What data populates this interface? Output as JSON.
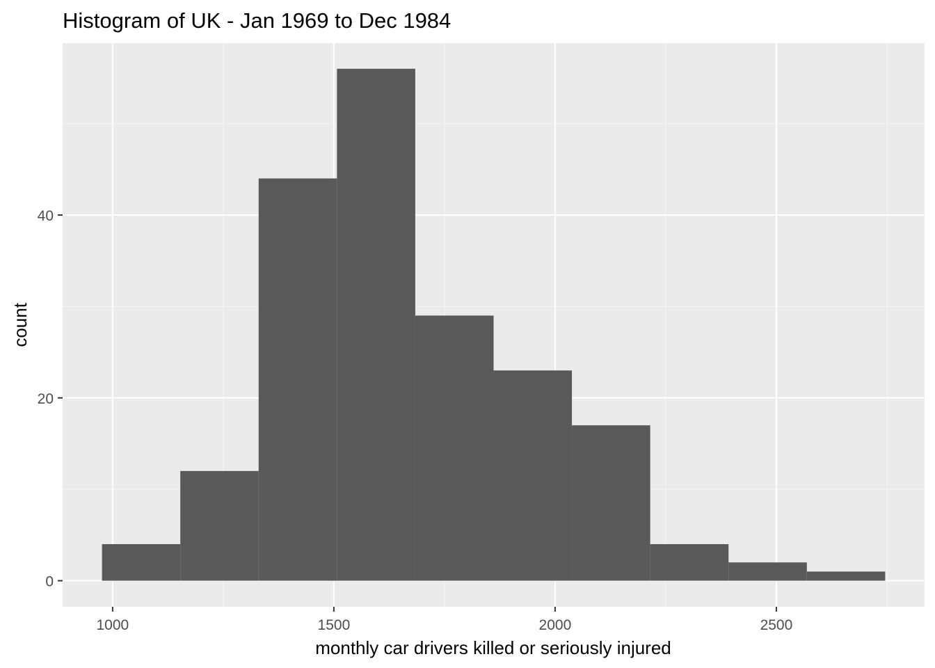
{
  "chart_data": {
    "type": "histogram",
    "title": "Histogram of  UK - Jan 1969 to Dec 1984",
    "xlabel": "monthly car drivers killed or seriously injured",
    "ylabel": "count",
    "xlim": [
      887,
      2835
    ],
    "ylim": [
      -2.85,
      58.8
    ],
    "x_ticks": [
      {
        "value": 1000,
        "label": "1000"
      },
      {
        "value": 1500,
        "label": "1500"
      },
      {
        "value": 2000,
        "label": "2000"
      },
      {
        "value": 2500,
        "label": "2500"
      }
    ],
    "y_ticks": [
      {
        "value": 0,
        "label": "0"
      },
      {
        "value": 20,
        "label": "20"
      },
      {
        "value": 40,
        "label": "40"
      }
    ],
    "grid": true,
    "bars": [
      {
        "x_start": 976,
        "x_end": 1153,
        "count": 4
      },
      {
        "x_start": 1153,
        "x_end": 1330,
        "count": 12
      },
      {
        "x_start": 1330,
        "x_end": 1507,
        "count": 44
      },
      {
        "x_start": 1507,
        "x_end": 1684,
        "count": 56
      },
      {
        "x_start": 1684,
        "x_end": 1861,
        "count": 29
      },
      {
        "x_start": 1861,
        "x_end": 2038,
        "count": 23
      },
      {
        "x_start": 2038,
        "x_end": 2215,
        "count": 17
      },
      {
        "x_start": 2215,
        "x_end": 2392,
        "count": 4
      },
      {
        "x_start": 2392,
        "x_end": 2569,
        "count": 2
      },
      {
        "x_start": 2569,
        "x_end": 2746,
        "count": 1
      }
    ],
    "colors": {
      "panel_background": "#ebebeb",
      "grid_major": "#ffffff",
      "grid_minor": "#f5f5f5",
      "bar_fill": "#595959",
      "tick_mark": "#333333"
    }
  }
}
